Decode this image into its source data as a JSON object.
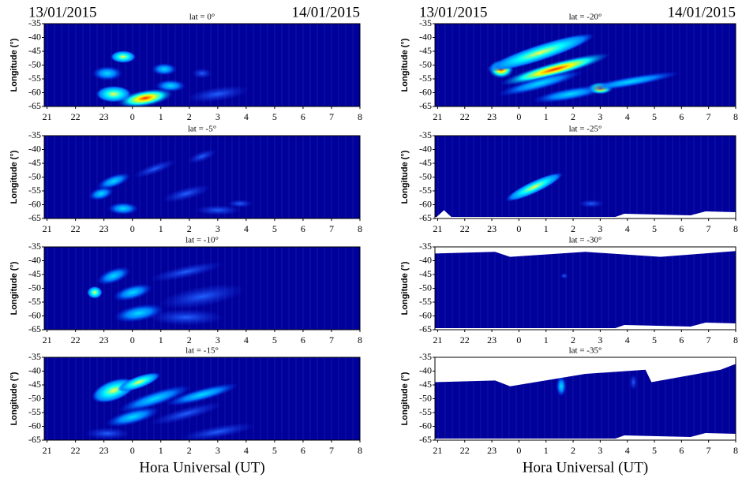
{
  "chart_data": [
    {
      "type": "heatmap",
      "title": "lat = 0°",
      "annotations": [
        "13/01/2015",
        "14/01/2015"
      ],
      "ylabel": "Longitude (°)",
      "ylim": [
        -65,
        -35
      ],
      "yticks": [
        -35,
        -40,
        -45,
        -50,
        -55,
        -60,
        -65
      ],
      "xlim": [
        20.9,
        32
      ],
      "xticks": [
        21,
        22,
        23,
        {
          "value": 24,
          "label": "0"
        },
        {
          "value": 25,
          "label": "1"
        },
        {
          "value": 26,
          "label": "2"
        },
        {
          "value": 27,
          "label": "3"
        },
        {
          "value": 28,
          "label": "4"
        },
        {
          "value": 29,
          "label": "5"
        },
        {
          "value": 30,
          "label": "6"
        },
        {
          "value": 31,
          "label": "7"
        },
        {
          "value": 32,
          "label": "8"
        }
      ]
    },
    {
      "type": "heatmap",
      "title": "lat = -5°",
      "ylabel": "Longitude (°)",
      "ylim": [
        -65,
        -35
      ],
      "yticks": [
        -35,
        -40,
        -45,
        -50,
        -55,
        -60,
        -65
      ],
      "xlim": [
        20.9,
        32
      ],
      "xticks": [
        21,
        22,
        23,
        {
          "value": 24,
          "label": "0"
        },
        {
          "value": 25,
          "label": "1"
        },
        {
          "value": 26,
          "label": "2"
        },
        {
          "value": 27,
          "label": "3"
        },
        {
          "value": 28,
          "label": "4"
        },
        {
          "value": 29,
          "label": "5"
        },
        {
          "value": 30,
          "label": "6"
        },
        {
          "value": 31,
          "label": "7"
        },
        {
          "value": 32,
          "label": "8"
        }
      ]
    },
    {
      "type": "heatmap",
      "title": "lat = -10°",
      "ylabel": "Longitude (°)",
      "ylim": [
        -65,
        -35
      ],
      "yticks": [
        -35,
        -40,
        -45,
        -50,
        -55,
        -60,
        -65
      ],
      "xlim": [
        20.9,
        32
      ],
      "xticks": [
        21,
        22,
        23,
        {
          "value": 24,
          "label": "0"
        },
        {
          "value": 25,
          "label": "1"
        },
        {
          "value": 26,
          "label": "2"
        },
        {
          "value": 27,
          "label": "3"
        },
        {
          "value": 28,
          "label": "4"
        },
        {
          "value": 29,
          "label": "5"
        },
        {
          "value": 30,
          "label": "6"
        },
        {
          "value": 31,
          "label": "7"
        },
        {
          "value": 32,
          "label": "8"
        }
      ]
    },
    {
      "type": "heatmap",
      "title": "lat = -15°",
      "ylabel": "Longitude (°)",
      "xlabel": "Hora Universal (UT)",
      "ylim": [
        -65,
        -35
      ],
      "yticks": [
        -35,
        -40,
        -45,
        -50,
        -55,
        -60,
        -65
      ],
      "xlim": [
        20.9,
        32
      ],
      "xticks": [
        21,
        22,
        23,
        {
          "value": 24,
          "label": "0"
        },
        {
          "value": 25,
          "label": "1"
        },
        {
          "value": 26,
          "label": "2"
        },
        {
          "value": 27,
          "label": "3"
        },
        {
          "value": 28,
          "label": "4"
        },
        {
          "value": 29,
          "label": "5"
        },
        {
          "value": 30,
          "label": "6"
        },
        {
          "value": 31,
          "label": "7"
        },
        {
          "value": 32,
          "label": "8"
        }
      ]
    },
    {
      "type": "heatmap",
      "title": "lat = -20°",
      "annotations": [
        "13/01/2015",
        "14/01/2015"
      ],
      "ylabel": "Longitude (°)",
      "ylim": [
        -65,
        -35
      ],
      "yticks": [
        -35,
        -40,
        -45,
        -50,
        -55,
        -60,
        -65
      ],
      "xlim": [
        20.9,
        32
      ],
      "xticks": [
        21,
        22,
        23,
        {
          "value": 24,
          "label": "0"
        },
        {
          "value": 25,
          "label": "1"
        },
        {
          "value": 26,
          "label": "2"
        },
        {
          "value": 27,
          "label": "3"
        },
        {
          "value": 28,
          "label": "4"
        },
        {
          "value": 29,
          "label": "5"
        },
        {
          "value": 30,
          "label": "6"
        },
        {
          "value": 31,
          "label": "7"
        },
        {
          "value": 32,
          "label": "8"
        }
      ]
    },
    {
      "type": "heatmap",
      "title": "lat = -25°",
      "ylabel": "Longitude (°)",
      "ylim": [
        -65,
        -35
      ],
      "yticks": [
        -35,
        -40,
        -45,
        -50,
        -55,
        -60,
        -65
      ],
      "xlim": [
        20.9,
        32
      ],
      "xticks": [
        21,
        22,
        23,
        {
          "value": 24,
          "label": "0"
        },
        {
          "value": 25,
          "label": "1"
        },
        {
          "value": 26,
          "label": "2"
        },
        {
          "value": 27,
          "label": "3"
        },
        {
          "value": 28,
          "label": "4"
        },
        {
          "value": 29,
          "label": "5"
        },
        {
          "value": 30,
          "label": "6"
        },
        {
          "value": 31,
          "label": "7"
        },
        {
          "value": 32,
          "label": "8"
        }
      ]
    },
    {
      "type": "heatmap",
      "title": "lat = -30°",
      "ylabel": "Longitude (°)",
      "ylim": [
        -65,
        -35
      ],
      "yticks": [
        -35,
        -40,
        -45,
        -50,
        -55,
        -60,
        -65
      ],
      "xlim": [
        20.9,
        32
      ],
      "xticks": [
        21,
        22,
        23,
        {
          "value": 24,
          "label": "0"
        },
        {
          "value": 25,
          "label": "1"
        },
        {
          "value": 26,
          "label": "2"
        },
        {
          "value": 27,
          "label": "3"
        },
        {
          "value": 28,
          "label": "4"
        },
        {
          "value": 29,
          "label": "5"
        },
        {
          "value": 30,
          "label": "6"
        },
        {
          "value": 31,
          "label": "7"
        },
        {
          "value": 32,
          "label": "8"
        }
      ]
    },
    {
      "type": "heatmap",
      "title": "lat = -35°",
      "ylabel": "Longitude (°)",
      "xlabel": "Hora Universal (UT)",
      "ylim": [
        -65,
        -35
      ],
      "yticks": [
        -35,
        -40,
        -45,
        -50,
        -55,
        -60,
        -65
      ],
      "xlim": [
        20.9,
        32
      ],
      "xticks": [
        21,
        22,
        23,
        {
          "value": 24,
          "label": "0"
        },
        {
          "value": 25,
          "label": "1"
        },
        {
          "value": 26,
          "label": "2"
        },
        {
          "value": 27,
          "label": "3"
        },
        {
          "value": 28,
          "label": "4"
        },
        {
          "value": 29,
          "label": "5"
        },
        {
          "value": 30,
          "label": "6"
        },
        {
          "value": 31,
          "label": "7"
        },
        {
          "value": 32,
          "label": "8"
        }
      ]
    }
  ]
}
